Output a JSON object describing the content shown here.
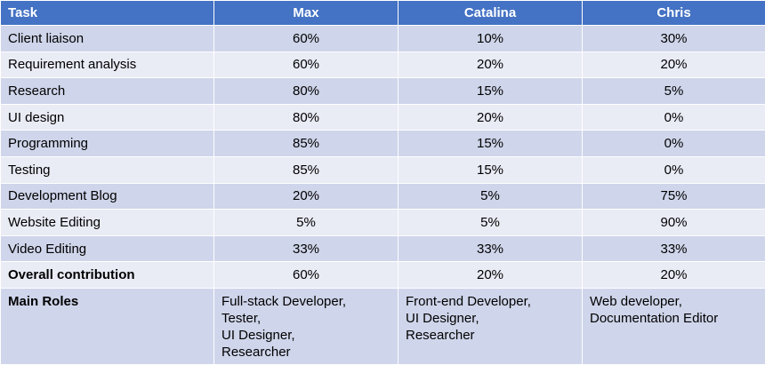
{
  "table": {
    "headers": [
      "Task",
      "Max",
      "Catalina",
      "Chris"
    ],
    "rows": [
      {
        "task": "Client liaison",
        "values": [
          "60%",
          "10%",
          "30%"
        ]
      },
      {
        "task": "Requirement analysis",
        "values": [
          "60%",
          "20%",
          "20%"
        ]
      },
      {
        "task": "Research",
        "values": [
          "80%",
          "15%",
          "5%"
        ]
      },
      {
        "task": "UI design",
        "values": [
          "80%",
          "20%",
          "0%"
        ]
      },
      {
        "task": "Programming",
        "values": [
          "85%",
          "15%",
          "0%"
        ]
      },
      {
        "task": "Testing",
        "values": [
          "85%",
          "15%",
          "0%"
        ]
      },
      {
        "task": "Development Blog",
        "values": [
          "20%",
          "5%",
          "75%"
        ]
      },
      {
        "task": "Website Editing",
        "values": [
          "5%",
          "5%",
          "90%"
        ]
      },
      {
        "task": "Video Editing",
        "values": [
          "33%",
          "33%",
          "33%"
        ]
      }
    ],
    "overall": {
      "task": "Overall contribution",
      "values": [
        "60%",
        "20%",
        "20%"
      ]
    },
    "roles": {
      "task": "Main Roles",
      "max": [
        "Full-stack Developer,",
        "Tester,",
        "UI Designer,",
        "Researcher"
      ],
      "catalina": [
        "Front-end Developer,",
        "UI Designer,",
        "Researcher"
      ],
      "chris": [
        "Web developer,",
        "Documentation Editor"
      ]
    }
  },
  "colors": {
    "header_bg": "#4472c4",
    "row_dark": "#cfd5ea",
    "row_light": "#e9ebf5"
  }
}
